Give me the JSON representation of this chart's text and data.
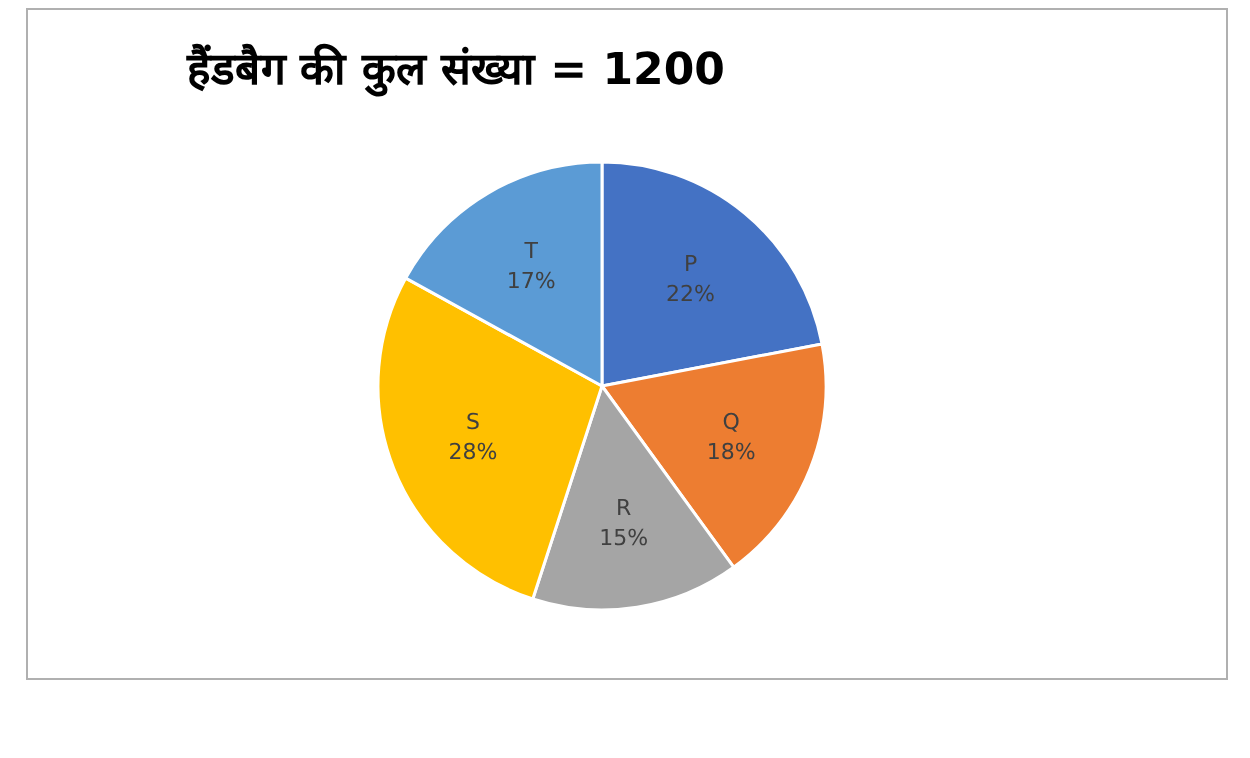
{
  "chart_data": {
    "type": "pie",
    "title": "हैंडबैग की कुल संख्या = 1200",
    "categories": [
      "P",
      "Q",
      "R",
      "S",
      "T"
    ],
    "values": [
      22,
      18,
      15,
      28,
      17
    ],
    "value_labels": [
      "22%",
      "18%",
      "15%",
      "28%",
      "17%"
    ],
    "colors": [
      "#4472c4",
      "#ed7d31",
      "#a5a5a5",
      "#ffc000",
      "#5b9bd5"
    ],
    "legend": false
  }
}
